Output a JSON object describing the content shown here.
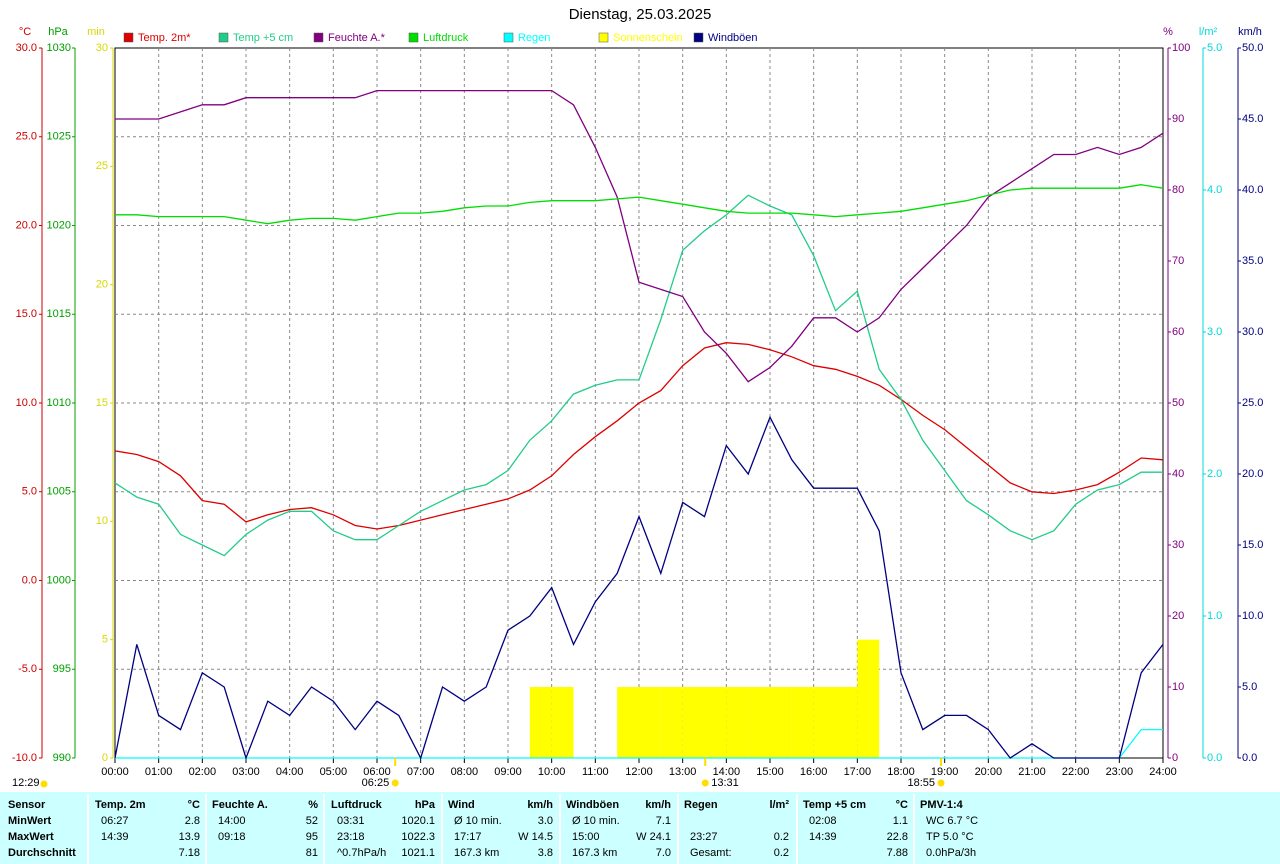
{
  "chart_data": {
    "type": "line",
    "title": "Dienstag, 25.03.2025",
    "x": [
      0,
      0.5,
      1,
      1.5,
      2,
      2.5,
      3,
      3.5,
      4,
      4.5,
      5,
      5.5,
      6,
      6.5,
      7,
      7.5,
      8,
      8.5,
      9,
      9.5,
      10,
      10.5,
      11,
      11.5,
      12,
      12.5,
      13,
      13.5,
      14,
      14.5,
      15,
      15.5,
      16,
      16.5,
      17,
      17.5,
      18,
      18.5,
      19,
      19.5,
      20,
      20.5,
      21,
      21.5,
      22,
      22.5,
      23,
      23.5,
      24
    ],
    "xlim": [
      0,
      24
    ],
    "xticks": [
      {
        "value": 0,
        "label": "00:00"
      },
      {
        "value": 1,
        "label": "01:00"
      },
      {
        "value": 2,
        "label": "02:00"
      },
      {
        "value": 3,
        "label": "03:00"
      },
      {
        "value": 4,
        "label": "04:00"
      },
      {
        "value": 5,
        "label": "05:00"
      },
      {
        "value": 6,
        "label": "06:00"
      },
      {
        "value": 7,
        "label": "07:00"
      },
      {
        "value": 8,
        "label": "08:00"
      },
      {
        "value": 9,
        "label": "09:00"
      },
      {
        "value": 10,
        "label": "10:00"
      },
      {
        "value": 11,
        "label": "11:00"
      },
      {
        "value": 12,
        "label": "12:00"
      },
      {
        "value": 13,
        "label": "13:00"
      },
      {
        "value": 14,
        "label": "14:00"
      },
      {
        "value": 15,
        "label": "15:00"
      },
      {
        "value": 16,
        "label": "16:00"
      },
      {
        "value": 17,
        "label": "17:00"
      },
      {
        "value": 18,
        "label": "18:00"
      },
      {
        "value": 19,
        "label": "19:00"
      },
      {
        "value": 20,
        "label": "20:00"
      },
      {
        "value": 21,
        "label": "21:00"
      },
      {
        "value": 22,
        "label": "22:00"
      },
      {
        "value": 23,
        "label": "23:00"
      },
      {
        "value": 24,
        "label": "24:00"
      }
    ],
    "grid": true,
    "axes": [
      {
        "unit": "°C",
        "color": "#cc0000",
        "lim": [
          -10,
          30
        ],
        "ticks": [
          {
            "value": -10,
            "label": "-10.0"
          },
          {
            "value": -5,
            "label": "-5.0"
          },
          {
            "value": 0,
            "label": "0.0"
          },
          {
            "value": 5,
            "label": "5.0"
          },
          {
            "value": 10,
            "label": "10.0"
          },
          {
            "value": 15,
            "label": "15.0"
          },
          {
            "value": 20,
            "label": "20.0"
          },
          {
            "value": 25,
            "label": "25.0"
          },
          {
            "value": 30,
            "label": "30.0"
          }
        ]
      },
      {
        "unit": "hPa",
        "color": "#00a000",
        "lim": [
          990,
          1030
        ],
        "ticks": [
          990,
          995,
          1000,
          1005,
          1010,
          1015,
          1020,
          1025,
          1030
        ]
      },
      {
        "unit": "min",
        "color": "#d8d800",
        "lim": [
          0,
          30
        ],
        "ticks": [
          0,
          5,
          10,
          15,
          20,
          25,
          30
        ]
      },
      {
        "unit": "%",
        "color": "#800080",
        "lim": [
          0,
          100
        ],
        "ticks": [
          0,
          10,
          20,
          30,
          40,
          50,
          60,
          70,
          80,
          90,
          100
        ]
      },
      {
        "unit": "l/m²",
        "color": "#00d8d8",
        "lim": [
          0,
          5
        ],
        "ticks": [
          {
            "value": 0,
            "label": "0.0"
          },
          {
            "value": 1,
            "label": "1.0"
          },
          {
            "value": 2,
            "label": "2.0"
          },
          {
            "value": 3,
            "label": "3.0"
          },
          {
            "value": 4,
            "label": "4.0"
          },
          {
            "value": 5,
            "label": "5.0"
          }
        ]
      },
      {
        "unit": "km/h",
        "color": "#000080",
        "lim": [
          0,
          50
        ],
        "ticks": [
          {
            "value": 0,
            "label": "0.0"
          },
          {
            "value": 5,
            "label": "5.0"
          },
          {
            "value": 10,
            "label": "10.0"
          },
          {
            "value": 15,
            "label": "15.0"
          },
          {
            "value": 20,
            "label": "20.0"
          },
          {
            "value": 25,
            "label": "25.0"
          },
          {
            "value": 30,
            "label": "30.0"
          },
          {
            "value": 35,
            "label": "35.0"
          },
          {
            "value": 40,
            "label": "40.0"
          },
          {
            "value": 45,
            "label": "45.0"
          },
          {
            "value": 50,
            "label": "50.0"
          }
        ]
      }
    ],
    "series": [
      {
        "name": "Temp. 2m*",
        "color": "#dd0000",
        "axis": "°C",
        "type": "line",
        "values": [
          7.3,
          7.1,
          6.7,
          5.9,
          4.5,
          4.3,
          3.3,
          3.7,
          4.0,
          4.1,
          3.7,
          3.1,
          2.9,
          3.1,
          3.4,
          3.7,
          4.0,
          4.3,
          4.6,
          5.1,
          5.9,
          7.1,
          8.1,
          9.0,
          10.0,
          10.7,
          12.1,
          13.1,
          13.4,
          13.3,
          13.0,
          12.6,
          12.1,
          11.9,
          11.5,
          11.0,
          10.2,
          9.3,
          8.5,
          7.5,
          6.5,
          5.5,
          5.0,
          4.9,
          5.1,
          5.4,
          6.1,
          6.9,
          6.8
        ]
      },
      {
        "name": "Temp +5 cm",
        "color": "#22cc88",
        "axis": "°C",
        "type": "line",
        "values": [
          5.5,
          4.7,
          4.3,
          2.6,
          2.0,
          1.4,
          2.6,
          3.4,
          3.9,
          3.9,
          2.8,
          2.3,
          2.3,
          3.1,
          3.9,
          4.5,
          5.1,
          5.4,
          6.2,
          7.9,
          9.0,
          10.5,
          11.0,
          11.3,
          11.3,
          14.7,
          18.6,
          19.7,
          20.6,
          21.7,
          21.1,
          20.6,
          18.3,
          15.2,
          16.3,
          11.9,
          10.2,
          7.9,
          6.2,
          4.5,
          3.7,
          2.8,
          2.3,
          2.8,
          4.3,
          5.1,
          5.4,
          6.1,
          6.1
        ]
      },
      {
        "name": "Feuchte A.*",
        "color": "#800080",
        "axis": "%",
        "type": "line",
        "values": [
          90,
          90,
          90,
          91,
          92,
          92,
          93,
          93,
          93,
          93,
          93,
          93,
          94,
          94,
          94,
          94,
          94,
          94,
          94,
          94,
          94,
          92,
          86,
          79,
          67,
          66,
          65,
          60,
          57,
          53,
          55,
          58,
          62,
          62,
          60,
          62,
          66,
          69,
          72,
          75,
          79,
          81,
          83,
          85,
          85,
          86,
          85,
          86,
          88
        ]
      },
      {
        "name": "Luftdruck",
        "color": "#00dd00",
        "axis": "hPa",
        "type": "line",
        "values": [
          1020.6,
          1020.6,
          1020.5,
          1020.5,
          1020.5,
          1020.5,
          1020.3,
          1020.1,
          1020.3,
          1020.4,
          1020.4,
          1020.3,
          1020.5,
          1020.7,
          1020.7,
          1020.8,
          1021.0,
          1021.1,
          1021.1,
          1021.3,
          1021.4,
          1021.4,
          1021.4,
          1021.5,
          1021.6,
          1021.4,
          1021.2,
          1021.0,
          1020.8,
          1020.7,
          1020.7,
          1020.7,
          1020.6,
          1020.5,
          1020.6,
          1020.7,
          1020.8,
          1021.0,
          1021.2,
          1021.4,
          1021.7,
          1022.0,
          1022.1,
          1022.1,
          1022.1,
          1022.1,
          1022.1,
          1022.3,
          1022.1
        ]
      },
      {
        "name": "Regen",
        "color": "#00ffff",
        "axis": "l/m²",
        "type": "line",
        "values": [
          0,
          0,
          0,
          0,
          0,
          0,
          0,
          0,
          0,
          0,
          0,
          0,
          0,
          0,
          0,
          0,
          0,
          0,
          0,
          0,
          0,
          0,
          0,
          0,
          0,
          0,
          0,
          0,
          0,
          0,
          0,
          0,
          0,
          0,
          0,
          0,
          0,
          0,
          0,
          0,
          0,
          0,
          0,
          0,
          0,
          0,
          0,
          0.2,
          0.2
        ]
      },
      {
        "name": "Sonnenschein",
        "color": "#ffff00",
        "axis": "min",
        "type": "bar",
        "values": [
          0,
          0,
          0,
          0,
          0,
          0,
          0,
          0,
          0,
          0,
          0,
          0,
          0,
          0,
          0,
          0,
          0,
          0,
          0,
          3,
          3,
          0,
          0,
          3,
          3,
          3,
          3,
          3,
          3,
          3,
          3,
          3,
          3,
          3,
          5,
          0,
          0,
          0,
          0,
          0,
          0,
          0,
          0,
          0,
          0,
          0,
          0,
          0,
          0
        ]
      },
      {
        "name": "Windböen",
        "color": "#000080",
        "axis": "km/h",
        "type": "line",
        "values": [
          0,
          8,
          3,
          2,
          6,
          5,
          0,
          4,
          3,
          5,
          4,
          2,
          4,
          3,
          0,
          5,
          4,
          5,
          9,
          10,
          12,
          8,
          11,
          13,
          17,
          13,
          18,
          17,
          22,
          20,
          24,
          21,
          19,
          19,
          19,
          16,
          6,
          2,
          3,
          3,
          2,
          0,
          1,
          0,
          0,
          0,
          0,
          6,
          8
        ]
      }
    ],
    "day_length": "12:29",
    "sun_times": [
      "06:25",
      "13:31",
      "18:55"
    ]
  },
  "stats": {
    "corner": "Sensor",
    "columns": [
      {
        "name": "Temp. 2m",
        "unit": "°C"
      },
      {
        "name": "Feuchte A.",
        "unit": "%"
      },
      {
        "name": "Luftdruck",
        "unit": "hPa"
      },
      {
        "name": "Wind",
        "unit": "km/h"
      },
      {
        "name": "Windböen",
        "unit": "km/h"
      },
      {
        "name": "Regen",
        "unit": "l/m²"
      },
      {
        "name": "Temp +5 cm",
        "unit": "°C"
      },
      {
        "name": "PMV-1:4"
      }
    ],
    "rows": [
      {
        "label": "MinWert",
        "cells": [
          {
            "left": "06:27",
            "right": "2.8"
          },
          {
            "left": "14:00",
            "right": "52"
          },
          {
            "left": "03:31",
            "right": "1020.1"
          },
          {
            "left": "Ø 10 min.",
            "right": "3.0"
          },
          {
            "left": "Ø 10 min.",
            "right": "7.1"
          },
          {},
          {
            "left": "02:08",
            "right": "1.1"
          },
          {
            "left": "WC 6.7 °C"
          }
        ]
      },
      {
        "label": "MaxWert",
        "cells": [
          {
            "left": "14:39",
            "right": "13.9"
          },
          {
            "left": "09:18",
            "right": "95"
          },
          {
            "left": "23:18",
            "right": "1022.3"
          },
          {
            "left": "17:17",
            "right": "W 14.5"
          },
          {
            "left": "15:00",
            "right": "W 24.1"
          },
          {
            "left": "23:27",
            "right": "0.2"
          },
          {
            "left": "14:39",
            "right": "22.8"
          },
          {
            "left": "TP 5.0 °C"
          }
        ]
      },
      {
        "label": "Durchschnitt",
        "cells": [
          {
            "right": "7.18"
          },
          {
            "right": "81"
          },
          {
            "left": "^0.7hPa/h",
            "right": "1021.1"
          },
          {
            "left": "167.3 km",
            "right": "3.8"
          },
          {
            "left": "167.3 km",
            "right": "7.0"
          },
          {
            "left": "Gesamt:",
            "right": "0.2"
          },
          {
            "right": "7.88"
          },
          {
            "left": "0.0hPa/3h"
          }
        ]
      }
    ]
  }
}
